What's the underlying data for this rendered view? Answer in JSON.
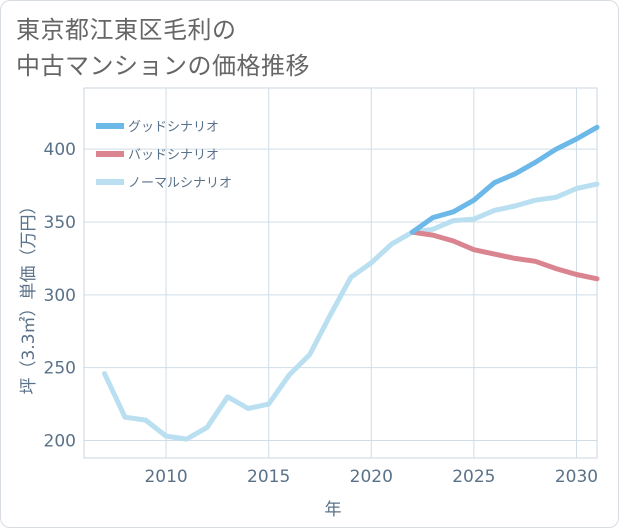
{
  "title": {
    "line1": "東京都江東区毛利の",
    "line2": "中古マンションの価格推移"
  },
  "chart_data": {
    "type": "line",
    "xlabel": "年",
    "ylabel": "坪（3.3㎡）単価（万円）",
    "xlim": [
      2006,
      2031
    ],
    "ylim": [
      188,
      442
    ],
    "x_ticks": [
      2010,
      2015,
      2020,
      2025,
      2030
    ],
    "y_ticks": [
      200,
      250,
      300,
      350,
      400
    ],
    "grid": true,
    "legend_position": "top-left",
    "series": [
      {
        "name": "グッドシナリオ",
        "color": "#6cb8e8",
        "x": [
          2022,
          2023,
          2024,
          2025,
          2026,
          2027,
          2028,
          2029,
          2030,
          2031
        ],
        "y": [
          343,
          353,
          357,
          365,
          377,
          383,
          391,
          400,
          407,
          415
        ]
      },
      {
        "name": "バッドシナリオ",
        "color": "#d9848f",
        "x": [
          2022,
          2023,
          2024,
          2025,
          2026,
          2027,
          2028,
          2029,
          2030,
          2031
        ],
        "y": [
          343,
          341,
          337,
          331,
          328,
          325,
          323,
          318,
          314,
          311
        ]
      },
      {
        "name": "ノーマルシナリオ",
        "color": "#b9dff0",
        "x": [
          2007,
          2008,
          2009,
          2010,
          2011,
          2012,
          2013,
          2014,
          2015,
          2016,
          2017,
          2018,
          2019,
          2020,
          2021,
          2022,
          2023,
          2024,
          2025,
          2026,
          2027,
          2028,
          2029,
          2030,
          2031
        ],
        "y": [
          246,
          216,
          214,
          203,
          201,
          209,
          230,
          222,
          225,
          245,
          259,
          286,
          312,
          322,
          335,
          343,
          345,
          351,
          352,
          358,
          361,
          365,
          367,
          373,
          376
        ]
      }
    ]
  }
}
